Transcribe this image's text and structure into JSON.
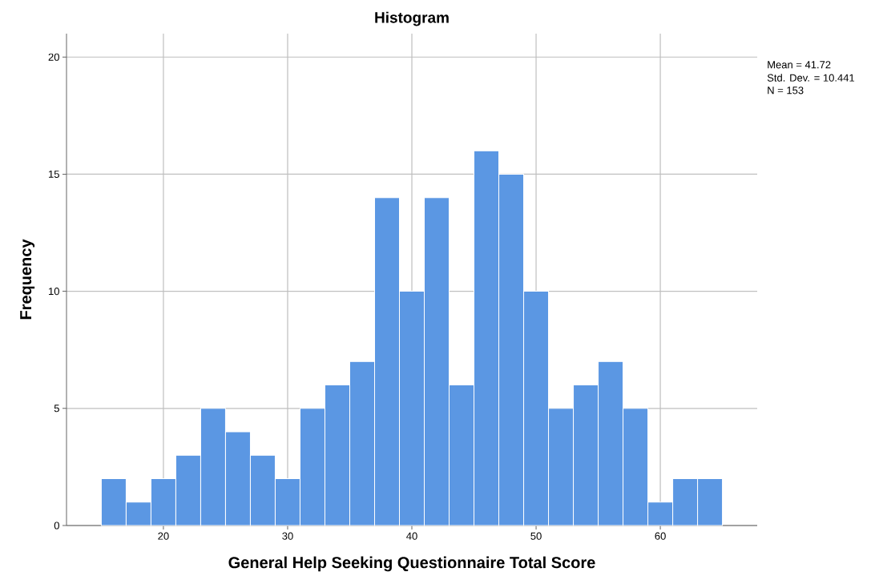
{
  "chart_data": {
    "type": "histogram",
    "title": "Histogram",
    "xlabel": "General Help Seeking Questionnaire Total Score",
    "ylabel": "Frequency",
    "bins": [
      15,
      17,
      19,
      21,
      23,
      25,
      27,
      29,
      31,
      33,
      35,
      37,
      39,
      41,
      43,
      45,
      47,
      49,
      51,
      53,
      55,
      57,
      59,
      61,
      63,
      65
    ],
    "values": [
      2,
      1,
      2,
      3,
      5,
      4,
      3,
      2,
      5,
      6,
      7,
      14,
      10,
      14,
      6,
      16,
      15,
      10,
      5,
      6,
      7,
      5,
      1,
      2,
      2
    ],
    "color": "#5b97e3",
    "xlim": [
      12.2,
      67.8
    ],
    "ylim": [
      0,
      21
    ],
    "xticks": [
      20,
      30,
      40,
      50,
      60
    ],
    "yticks": [
      0,
      5,
      10,
      15,
      20
    ],
    "grid": true,
    "annotations": [
      "Mean = 41.72",
      "Std. Dev. = 10.441",
      "N = 153"
    ]
  }
}
